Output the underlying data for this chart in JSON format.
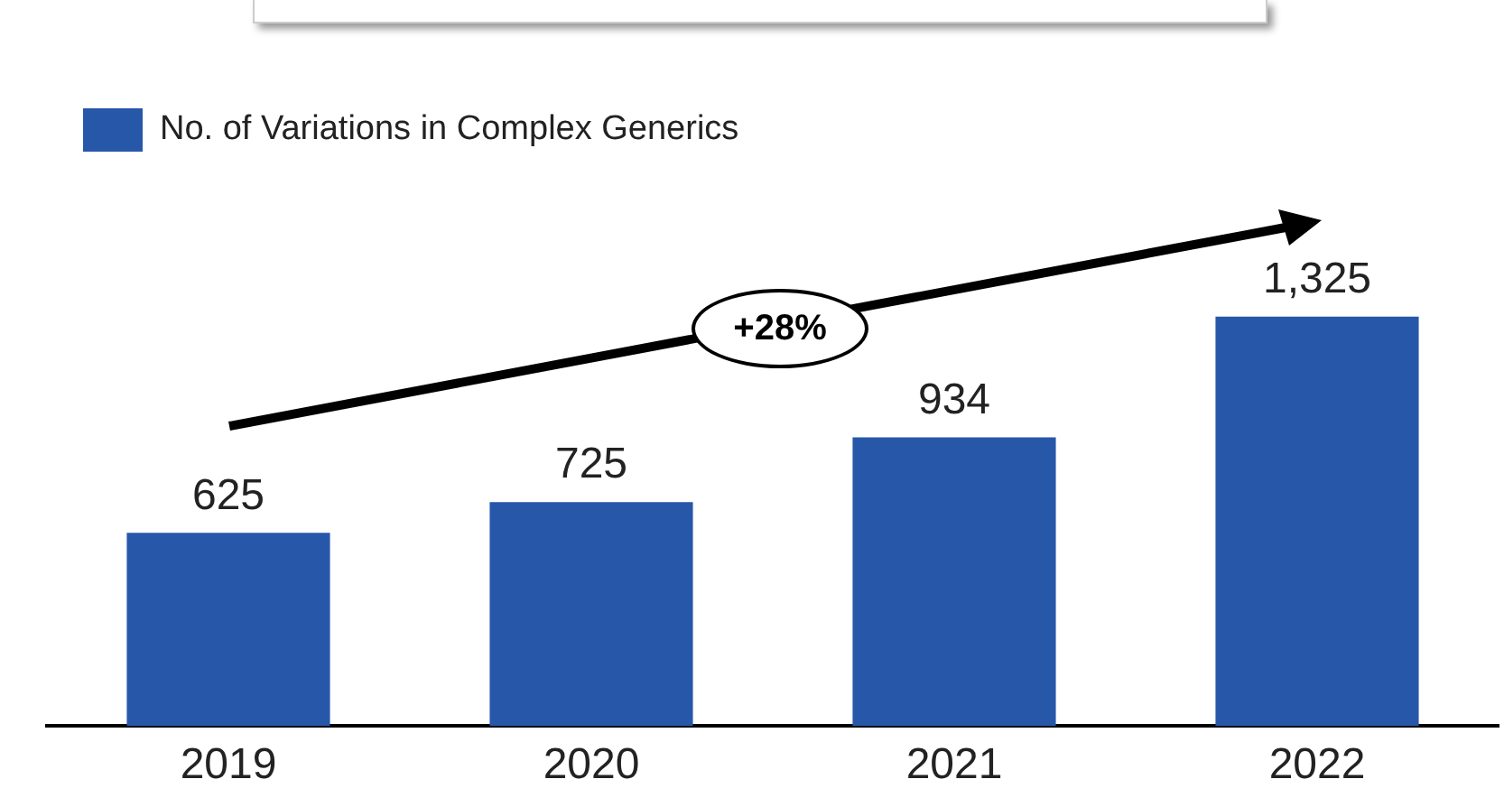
{
  "chart_data": {
    "type": "bar",
    "categories": [
      "2019",
      "2020",
      "2021",
      "2022"
    ],
    "series": [
      {
        "name": "No. of Variations in Complex Generics",
        "color": "#2757a8",
        "values": [
          625,
          725,
          934,
          1325
        ],
        "value_labels": [
          "625",
          "725",
          "934",
          "1,325"
        ]
      }
    ],
    "tick_labels": "x",
    "legend": "top left",
    "grid": false,
    "annotations": [
      "+28%"
    ]
  }
}
